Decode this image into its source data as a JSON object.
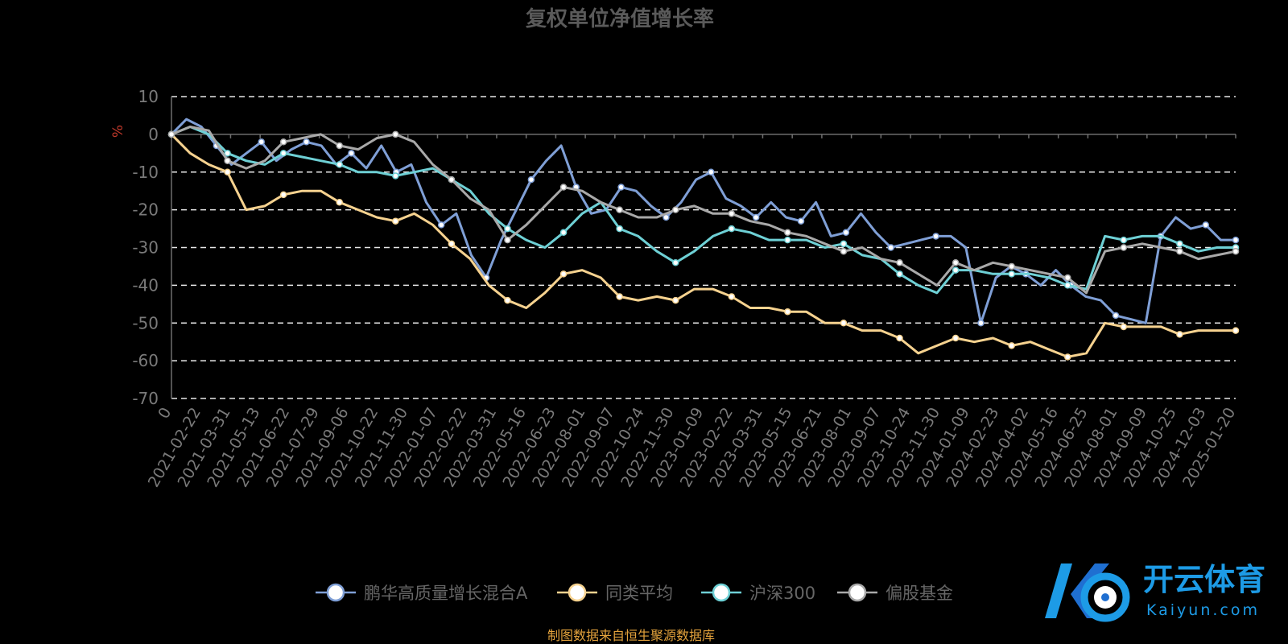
{
  "chart_data": {
    "type": "line",
    "title": "复权单位净值增长率",
    "ylabel": "%",
    "ylim": [
      -70,
      10
    ],
    "yticks": [
      10,
      0,
      -10,
      -20,
      -30,
      -40,
      -50,
      -60,
      -70
    ],
    "xtick_labels": [
      "0",
      "2021-02-22",
      "2021-03-31",
      "2021-05-13",
      "2021-06-22",
      "2021-07-29",
      "2021-09-06",
      "2021-10-22",
      "2021-11-30",
      "2022-01-07",
      "2022-02-22",
      "2022-03-31",
      "2022-05-16",
      "2022-06-23",
      "2022-08-01",
      "2022-09-07",
      "2022-10-24",
      "2022-11-30",
      "2023-01-09",
      "2023-02-22",
      "2023-03-31",
      "2023-05-15",
      "2023-06-21",
      "2023-08-01",
      "2023-09-07",
      "2023-10-24",
      "2023-11-30",
      "2024-01-09",
      "2024-02-23",
      "2024-04-02",
      "2024-05-16",
      "2024-06-25",
      "2024-08-01",
      "2024-09-09",
      "2024-10-25",
      "2024-12-03",
      "2025-01-20"
    ],
    "grid": true,
    "legend_position": "bottom",
    "series": [
      {
        "name": "鹏华高质量增长混合A",
        "color": "#7f9fd6",
        "values": [
          0,
          4,
          2,
          -3,
          -8,
          -5,
          -2,
          -7,
          -4,
          -2,
          -3,
          -8,
          -5,
          -9,
          -3,
          -10,
          -8,
          -18,
          -24,
          -21,
          -32,
          -38,
          -28,
          -20,
          -12,
          -7,
          -3,
          -14,
          -21,
          -20,
          -14,
          -15,
          -19,
          -22,
          -18,
          -12,
          -10,
          -17,
          -19,
          -22,
          -18,
          -22,
          -23,
          -18,
          -27,
          -26,
          -21,
          -26,
          -30,
          -29,
          -28,
          -27,
          -27,
          -30,
          -50,
          -38,
          -35,
          -37,
          -40,
          -36,
          -40,
          -43,
          -44,
          -48,
          -49,
          -50,
          -27,
          -22,
          -25,
          -24,
          -28,
          -28
        ]
      },
      {
        "name": "同类平均",
        "color": "#f6d28f",
        "values": [
          0,
          -5,
          -8,
          -10,
          -20,
          -19,
          -16,
          -15,
          -15,
          -18,
          -20,
          -22,
          -23,
          -21,
          -24,
          -29,
          -33,
          -40,
          -44,
          -46,
          -42,
          -37,
          -36,
          -38,
          -43,
          -44,
          -43,
          -44,
          -41,
          -41,
          -43,
          -46,
          -46,
          -47,
          -47,
          -50,
          -50,
          -52,
          -52,
          -54,
          -58,
          -56,
          -54,
          -55,
          -54,
          -56,
          -55,
          -57,
          -59,
          -58,
          -50,
          -51,
          -51,
          -51,
          -53,
          -52,
          -52,
          -52
        ]
      },
      {
        "name": "沪深300",
        "color": "#6ed0d5",
        "values": [
          0,
          2,
          0,
          -5,
          -7,
          -8,
          -5,
          -6,
          -7,
          -8,
          -10,
          -10,
          -11,
          -10,
          -9,
          -12,
          -15,
          -21,
          -25,
          -28,
          -30,
          -26,
          -21,
          -18,
          -25,
          -27,
          -31,
          -34,
          -31,
          -27,
          -25,
          -26,
          -28,
          -28,
          -28,
          -30,
          -29,
          -32,
          -33,
          -37,
          -40,
          -42,
          -36,
          -36,
          -37,
          -37,
          -37,
          -38,
          -40,
          -41,
          -27,
          -28,
          -27,
          -27,
          -29,
          -31,
          -30,
          -30
        ]
      },
      {
        "name": "偏股基金",
        "color": "#a9a9a9",
        "values": [
          0,
          2,
          1,
          -7,
          -9,
          -7,
          -2,
          -1,
          0,
          -3,
          -4,
          -1,
          0,
          -2,
          -8,
          -12,
          -17,
          -20,
          -28,
          -24,
          -19,
          -14,
          -15,
          -18,
          -20,
          -22,
          -22,
          -20,
          -19,
          -21,
          -21,
          -23,
          -24,
          -26,
          -27,
          -29,
          -31,
          -30,
          -33,
          -34,
          -37,
          -40,
          -34,
          -36,
          -34,
          -35,
          -36,
          -37,
          -38,
          -42,
          -31,
          -30,
          -29,
          -30,
          -31,
          -33,
          -32,
          -31
        ]
      }
    ]
  },
  "source_note": "制图数据来自恒生聚源数据库",
  "watermark": {
    "name": "开云体育",
    "domain": "Kaiyun.com"
  }
}
